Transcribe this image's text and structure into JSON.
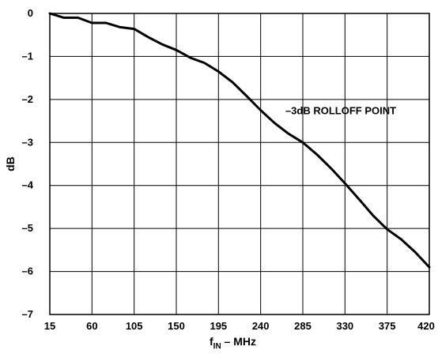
{
  "chart_data": {
    "type": "line",
    "title": "",
    "xlabel": "f",
    "xlabel_sub": "IN",
    "xlabel_suffix": " – MHz",
    "ylabel": "dB",
    "xlim": [
      15,
      420
    ],
    "ylim": [
      -7,
      0
    ],
    "x_ticks": [
      15,
      60,
      105,
      150,
      195,
      240,
      285,
      330,
      375,
      420
    ],
    "x_tick_labels": [
      "15",
      "60",
      "105",
      "150",
      "195",
      "240",
      "285",
      "330",
      "375",
      "420"
    ],
    "y_ticks": [
      0,
      -1,
      -2,
      -3,
      -4,
      -5,
      -6,
      -7
    ],
    "y_tick_labels": [
      "0",
      "–1",
      "–2",
      "–3",
      "–4",
      "–5",
      "–6",
      "–7"
    ],
    "grid": true,
    "series": [
      {
        "x": [
          15,
          30,
          45,
          60,
          75,
          90,
          105,
          120,
          135,
          150,
          165,
          180,
          195,
          210,
          225,
          240,
          255,
          270,
          285,
          300,
          315,
          330,
          345,
          360,
          375,
          390,
          405,
          420
        ],
        "y": [
          0.0,
          -0.1,
          -0.1,
          -0.22,
          -0.22,
          -0.32,
          -0.36,
          -0.55,
          -0.72,
          -0.85,
          -1.03,
          -1.15,
          -1.35,
          -1.6,
          -1.92,
          -2.25,
          -2.55,
          -2.8,
          -3.0,
          -3.28,
          -3.6,
          -3.95,
          -4.32,
          -4.7,
          -5.02,
          -5.25,
          -5.55,
          -5.9
        ]
      }
    ],
    "annotation": {
      "text": "–3dB ROLLOFF POINT",
      "x": 285,
      "y": -3.0
    }
  }
}
